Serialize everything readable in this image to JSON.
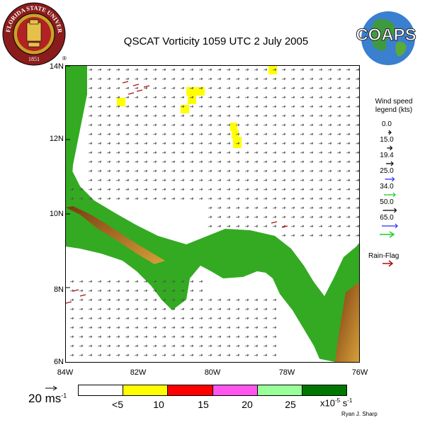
{
  "logo": {
    "ring_text": "FLORIDA STATE UNIVERSITY",
    "year": "1851",
    "registered": "®"
  },
  "coaps_logo": {
    "text": "COAPS"
  },
  "title": "QSCAT Vorticity 1059 UTC 2 July 2005",
  "map": {
    "lat_labels": [
      "14N",
      "12N",
      "10N",
      "8N",
      "6N"
    ],
    "lon_labels": [
      "84W",
      "82W",
      "80W",
      "78W",
      "76W"
    ]
  },
  "wind_legend": {
    "title_line1": "Wind speed",
    "title_line2": "legend (kts)",
    "speeds": [
      {
        "value": "0.0",
        "color": "#000000"
      },
      {
        "value": "15.0",
        "color": "#000000"
      },
      {
        "value": "19.4",
        "color": "#000000"
      },
      {
        "value": "25.0",
        "color": "#2a2aff"
      },
      {
        "value": "34.0",
        "color": "#22cc22"
      },
      {
        "value": "50.0",
        "color": "#000000"
      },
      {
        "value": "65.0",
        "color": "#2a2aff"
      }
    ],
    "extra_arrow_color": "#22cc22",
    "rain_flag_label": "Rain-Flag",
    "rain_flag_color": "#aa1111"
  },
  "scale_arrow": {
    "label": "20 ms",
    "exponent": "-1"
  },
  "colorbar": {
    "colors": [
      "#ffffff",
      "#ffff00",
      "#ff0000",
      "#ff55ee",
      "#99ff99",
      "#007700"
    ],
    "ticks": [
      "<5",
      "10",
      "15",
      "20",
      "25"
    ],
    "units_base": "x10",
    "units_exp1": "-5",
    "units_mid": " s",
    "units_exp2": "-1"
  },
  "credit": "Ryan J. Sharp"
}
